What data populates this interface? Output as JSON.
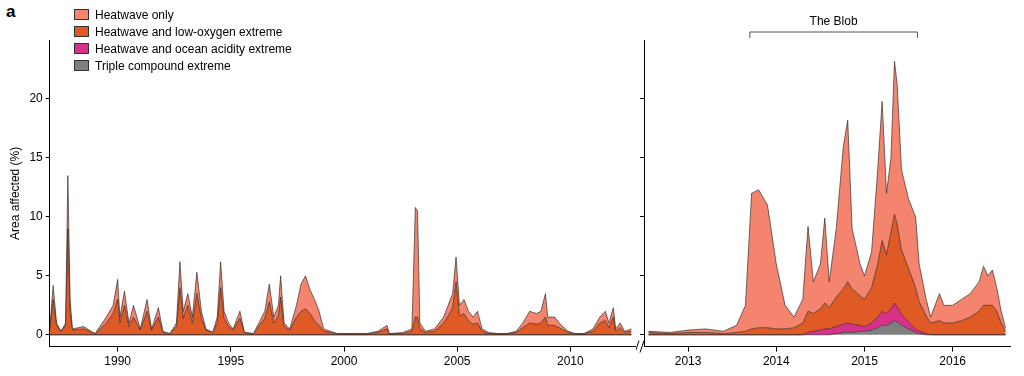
{
  "chart_data": [
    {
      "type": "area",
      "title": "a",
      "y_label": "Area affected (%)",
      "stacked": true,
      "grid": false,
      "legend": "top-left",
      "xlim": [
        1987,
        2012.9
      ],
      "xticks": [
        1990,
        1995,
        2000,
        2005,
        2010
      ],
      "ylim": [
        -1,
        25
      ],
      "yticks": [
        0,
        5,
        10,
        15,
        20
      ],
      "x": [
        1987.0,
        1987.15,
        1987.3,
        1987.5,
        1987.7,
        1987.8,
        1987.9,
        1988.0,
        1988.5,
        1989.0,
        1989.5,
        1989.8,
        1990.0,
        1990.1,
        1990.3,
        1990.5,
        1990.7,
        1991.0,
        1991.3,
        1991.5,
        1991.8,
        1992.0,
        1992.3,
        1992.6,
        1992.75,
        1992.9,
        1993.1,
        1993.3,
        1993.5,
        1993.7,
        1993.9,
        1994.2,
        1994.4,
        1994.55,
        1994.7,
        1994.9,
        1995.1,
        1995.4,
        1995.6,
        1996.0,
        1996.5,
        1996.7,
        1996.9,
        1997.1,
        1997.2,
        1997.35,
        1997.6,
        1997.9,
        1998.1,
        1998.3,
        1998.5,
        1998.7,
        1998.9,
        1999.1,
        1999.4,
        1999.7,
        2000.5,
        2001.0,
        2001.5,
        2001.9,
        2002.0,
        2002.6,
        2003.0,
        2003.15,
        2003.25,
        2003.35,
        2003.6,
        2004.0,
        2004.4,
        2004.6,
        2004.8,
        2004.95,
        2005.1,
        2005.3,
        2005.5,
        2005.7,
        2005.9,
        2006.1,
        2006.4,
        2006.8,
        2007.2,
        2007.6,
        2007.9,
        2008.2,
        2008.5,
        2008.7,
        2008.9,
        2009.0,
        2009.3,
        2009.6,
        2009.9,
        2010.2,
        2010.6,
        2011.0,
        2011.3,
        2011.55,
        2011.7,
        2011.9,
        2012.0,
        2012.2,
        2012.4,
        2012.7
      ],
      "series": [
        {
          "name": "Heatwave only",
          "color": "#f4846d",
          "values": [
            0.1,
            1.2,
            0.2,
            0,
            0.2,
            4.5,
            1.0,
            0.1,
            0.2,
            0,
            0.5,
            0.7,
            1.7,
            0.5,
            1.2,
            0.3,
            1.0,
            0.1,
            1.0,
            0.1,
            0.8,
            0.1,
            0,
            0.3,
            2.2,
            0.6,
            1.0,
            0.5,
            1.8,
            0.6,
            0.1,
            0,
            0.5,
            2.2,
            0.6,
            0.3,
            0.1,
            0.6,
            0,
            0,
            0.6,
            1.5,
            0.5,
            0.9,
            1.8,
            0.3,
            0.1,
            1.0,
            2.3,
            2.8,
            2.0,
            1.8,
            1.2,
            0.2,
            0.1,
            0,
            0,
            0,
            0.1,
            0.3,
            0,
            0.1,
            0.2,
            9.3,
            9.0,
            0.5,
            0.1,
            0.2,
            0.5,
            0.9,
            1.2,
            2.1,
            0.9,
            1.2,
            0.8,
            0.6,
            1.0,
            0.2,
            0.1,
            0,
            0,
            0.1,
            0.4,
            1.0,
            0.9,
            1.0,
            2.0,
            0.7,
            0.7,
            0.3,
            0.1,
            0,
            0,
            0.2,
            0.5,
            0.8,
            0.4,
            0.8,
            0.2,
            0.4,
            0.1,
            0.2
          ]
        },
        {
          "name": "Heatwave and low-oxygen extreme",
          "color": "#e05a26",
          "values": [
            0.4,
            3.0,
            0.8,
            0.3,
            0.8,
            9.0,
            2.0,
            0.4,
            0.5,
            0.1,
            1.0,
            1.8,
            3.0,
            1.0,
            2.5,
            0.7,
            1.5,
            0.4,
            2.0,
            0.4,
            1.5,
            0.2,
            0.1,
            0.7,
            4.0,
            1.4,
            2.5,
            1.0,
            3.5,
            1.4,
            0.4,
            0.2,
            1.0,
            4.0,
            1.4,
            0.7,
            0.4,
            1.4,
            0.2,
            0.1,
            1.4,
            2.8,
            1.0,
            1.6,
            3.2,
            0.7,
            0.4,
            1.5,
            2.0,
            2.2,
            1.8,
            1.2,
            0.8,
            0.3,
            0.2,
            0.1,
            0.1,
            0.1,
            0.2,
            0.5,
            0.1,
            0.1,
            0.3,
            1.5,
            1.5,
            0.5,
            0.2,
            0.3,
            1.0,
            1.6,
            2.3,
            4.5,
            1.6,
            1.8,
            1.2,
            0.9,
            1.0,
            0.3,
            0.1,
            0.1,
            0.1,
            0.2,
            0.6,
            1.0,
            0.9,
            1.0,
            1.5,
            0.8,
            0.8,
            0.5,
            0.2,
            0.1,
            0.1,
            0.3,
            1.0,
            1.2,
            0.6,
            1.5,
            0.3,
            0.6,
            0.2,
            0.3
          ]
        },
        {
          "name": "Heatwave and ocean acidity extreme",
          "color": "#d8318a",
          "values": [
            0,
            0,
            0,
            0,
            0,
            0,
            0,
            0,
            0,
            0,
            0,
            0,
            0,
            0,
            0,
            0,
            0,
            0,
            0,
            0,
            0,
            0,
            0,
            0,
            0,
            0,
            0,
            0,
            0,
            0,
            0,
            0,
            0,
            0,
            0,
            0,
            0,
            0,
            0,
            0,
            0,
            0,
            0,
            0,
            0,
            0,
            0,
            0,
            0,
            0,
            0,
            0,
            0,
            0,
            0,
            0,
            0,
            0,
            0,
            0,
            0,
            0,
            0,
            0,
            0,
            0,
            0,
            0,
            0,
            0,
            0,
            0,
            0,
            0,
            0,
            0,
            0,
            0,
            0,
            0,
            0,
            0,
            0,
            0,
            0,
            0,
            0,
            0,
            0,
            0,
            0,
            0,
            0,
            0,
            0,
            0,
            0,
            0,
            0,
            0,
            0,
            0
          ]
        },
        {
          "name": "Triple compound extreme",
          "color": "#7f7f7f",
          "values": [
            0,
            0,
            0,
            0,
            0,
            0,
            0,
            0,
            0,
            0,
            0,
            0,
            0,
            0,
            0,
            0,
            0,
            0,
            0,
            0,
            0,
            0,
            0,
            0,
            0,
            0,
            0,
            0,
            0,
            0,
            0,
            0,
            0,
            0,
            0,
            0,
            0,
            0,
            0,
            0,
            0,
            0,
            0,
            0,
            0,
            0,
            0,
            0,
            0,
            0,
            0,
            0,
            0,
            0,
            0,
            0,
            0,
            0,
            0,
            0,
            0,
            0,
            0,
            0,
            0,
            0,
            0,
            0,
            0,
            0,
            0,
            0,
            0,
            0,
            0,
            0,
            0,
            0,
            0,
            0,
            0,
            0,
            0,
            0,
            0,
            0,
            0,
            0,
            0,
            0,
            0,
            0,
            0,
            0,
            0,
            0,
            0,
            0,
            0,
            0,
            0,
            0
          ]
        }
      ]
    },
    {
      "type": "area",
      "stacked": true,
      "grid": false,
      "tick_labels": "x",
      "xlim": [
        2012.5,
        2016.65
      ],
      "xticks": [
        2013,
        2014,
        2015,
        2016
      ],
      "ylim": [
        -1,
        25
      ],
      "yticks": [
        0,
        5,
        10,
        15,
        20
      ],
      "annotations": [
        {
          "text": "The Blob",
          "x": [
            2013.7,
            2015.6
          ]
        }
      ],
      "x": [
        2012.55,
        2012.8,
        2013.0,
        2013.2,
        2013.4,
        2013.55,
        2013.65,
        2013.72,
        2013.8,
        2013.9,
        2014.0,
        2014.1,
        2014.2,
        2014.3,
        2014.36,
        2014.42,
        2014.5,
        2014.55,
        2014.6,
        2014.68,
        2014.76,
        2014.81,
        2014.86,
        2014.95,
        2015.0,
        2015.08,
        2015.15,
        2015.2,
        2015.25,
        2015.3,
        2015.34,
        2015.37,
        2015.42,
        2015.5,
        2015.58,
        2015.62,
        2015.7,
        2015.75,
        2015.85,
        2015.9,
        2016.0,
        2016.1,
        2016.2,
        2016.3,
        2016.35,
        2016.4,
        2016.45,
        2016.5,
        2016.55,
        2016.6
      ],
      "series": [
        {
          "name": "Heatwave only",
          "color": "#f4846d",
          "values": [
            0.1,
            0.1,
            0.2,
            0.3,
            0.2,
            0.6,
            2.2,
            11.5,
            11.7,
            10.4,
            5.5,
            2.0,
            0.9,
            2.0,
            7.2,
            2.7,
            3.8,
            7.2,
            2.2,
            5.8,
            12.1,
            13.7,
            5.1,
            2.7,
            2.0,
            3.0,
            8.0,
            11.8,
            5.2,
            6.3,
            13.0,
            11.9,
            6.8,
            5.9,
            6.0,
            3.2,
            1.4,
            0.5,
            2.3,
            1.5,
            1.5,
            1.8,
            2.0,
            2.5,
            3.3,
            2.5,
            3.0,
            2.0,
            1.0,
            0.3
          ]
        },
        {
          "name": "Heatwave and low-oxygen extreme",
          "color": "#e05a26",
          "values": [
            0.2,
            0.1,
            0.2,
            0.2,
            0.1,
            0.2,
            0.3,
            0.5,
            0.6,
            0.6,
            0.5,
            0.5,
            0.6,
            1.0,
            1.8,
            1.5,
            1.8,
            2.2,
            1.8,
            2.5,
            3.0,
            3.5,
            3.0,
            2.5,
            2.3,
            3.0,
            4.5,
            6.0,
            5.0,
            6.5,
            7.5,
            7.0,
            5.5,
            4.5,
            3.5,
            2.5,
            1.5,
            1.0,
            1.2,
            1.0,
            1.0,
            1.2,
            1.5,
            2.0,
            2.5,
            2.5,
            2.5,
            2.0,
            1.0,
            0.3
          ]
        },
        {
          "name": "Heatwave and ocean acidity extreme",
          "color": "#d8318a",
          "values": [
            0,
            0,
            0,
            0,
            0,
            0,
            0,
            0,
            0,
            0,
            0,
            0,
            0,
            0,
            0.2,
            0.3,
            0.4,
            0.5,
            0.5,
            0.6,
            0.7,
            0.8,
            0.7,
            0.5,
            0.4,
            0.6,
            0.9,
            1.2,
            1.0,
            1.2,
            1.5,
            1.3,
            0.9,
            0.6,
            0.3,
            0.2,
            0.1,
            0,
            0,
            0,
            0,
            0,
            0,
            0,
            0,
            0,
            0,
            0,
            0,
            0
          ]
        },
        {
          "name": "Triple compound extreme",
          "color": "#7f7f7f",
          "values": [
            0,
            0,
            0,
            0,
            0,
            0,
            0,
            0,
            0,
            0,
            0,
            0,
            0,
            0,
            0,
            0,
            0,
            0,
            0,
            0.1,
            0.2,
            0.2,
            0.2,
            0.3,
            0.3,
            0.4,
            0.6,
            0.8,
            0.8,
            1.0,
            1.2,
            1.1,
            0.8,
            0.5,
            0.2,
            0.1,
            0,
            0,
            0,
            0,
            0,
            0,
            0,
            0,
            0,
            0,
            0,
            0,
            0,
            0
          ]
        }
      ]
    }
  ]
}
